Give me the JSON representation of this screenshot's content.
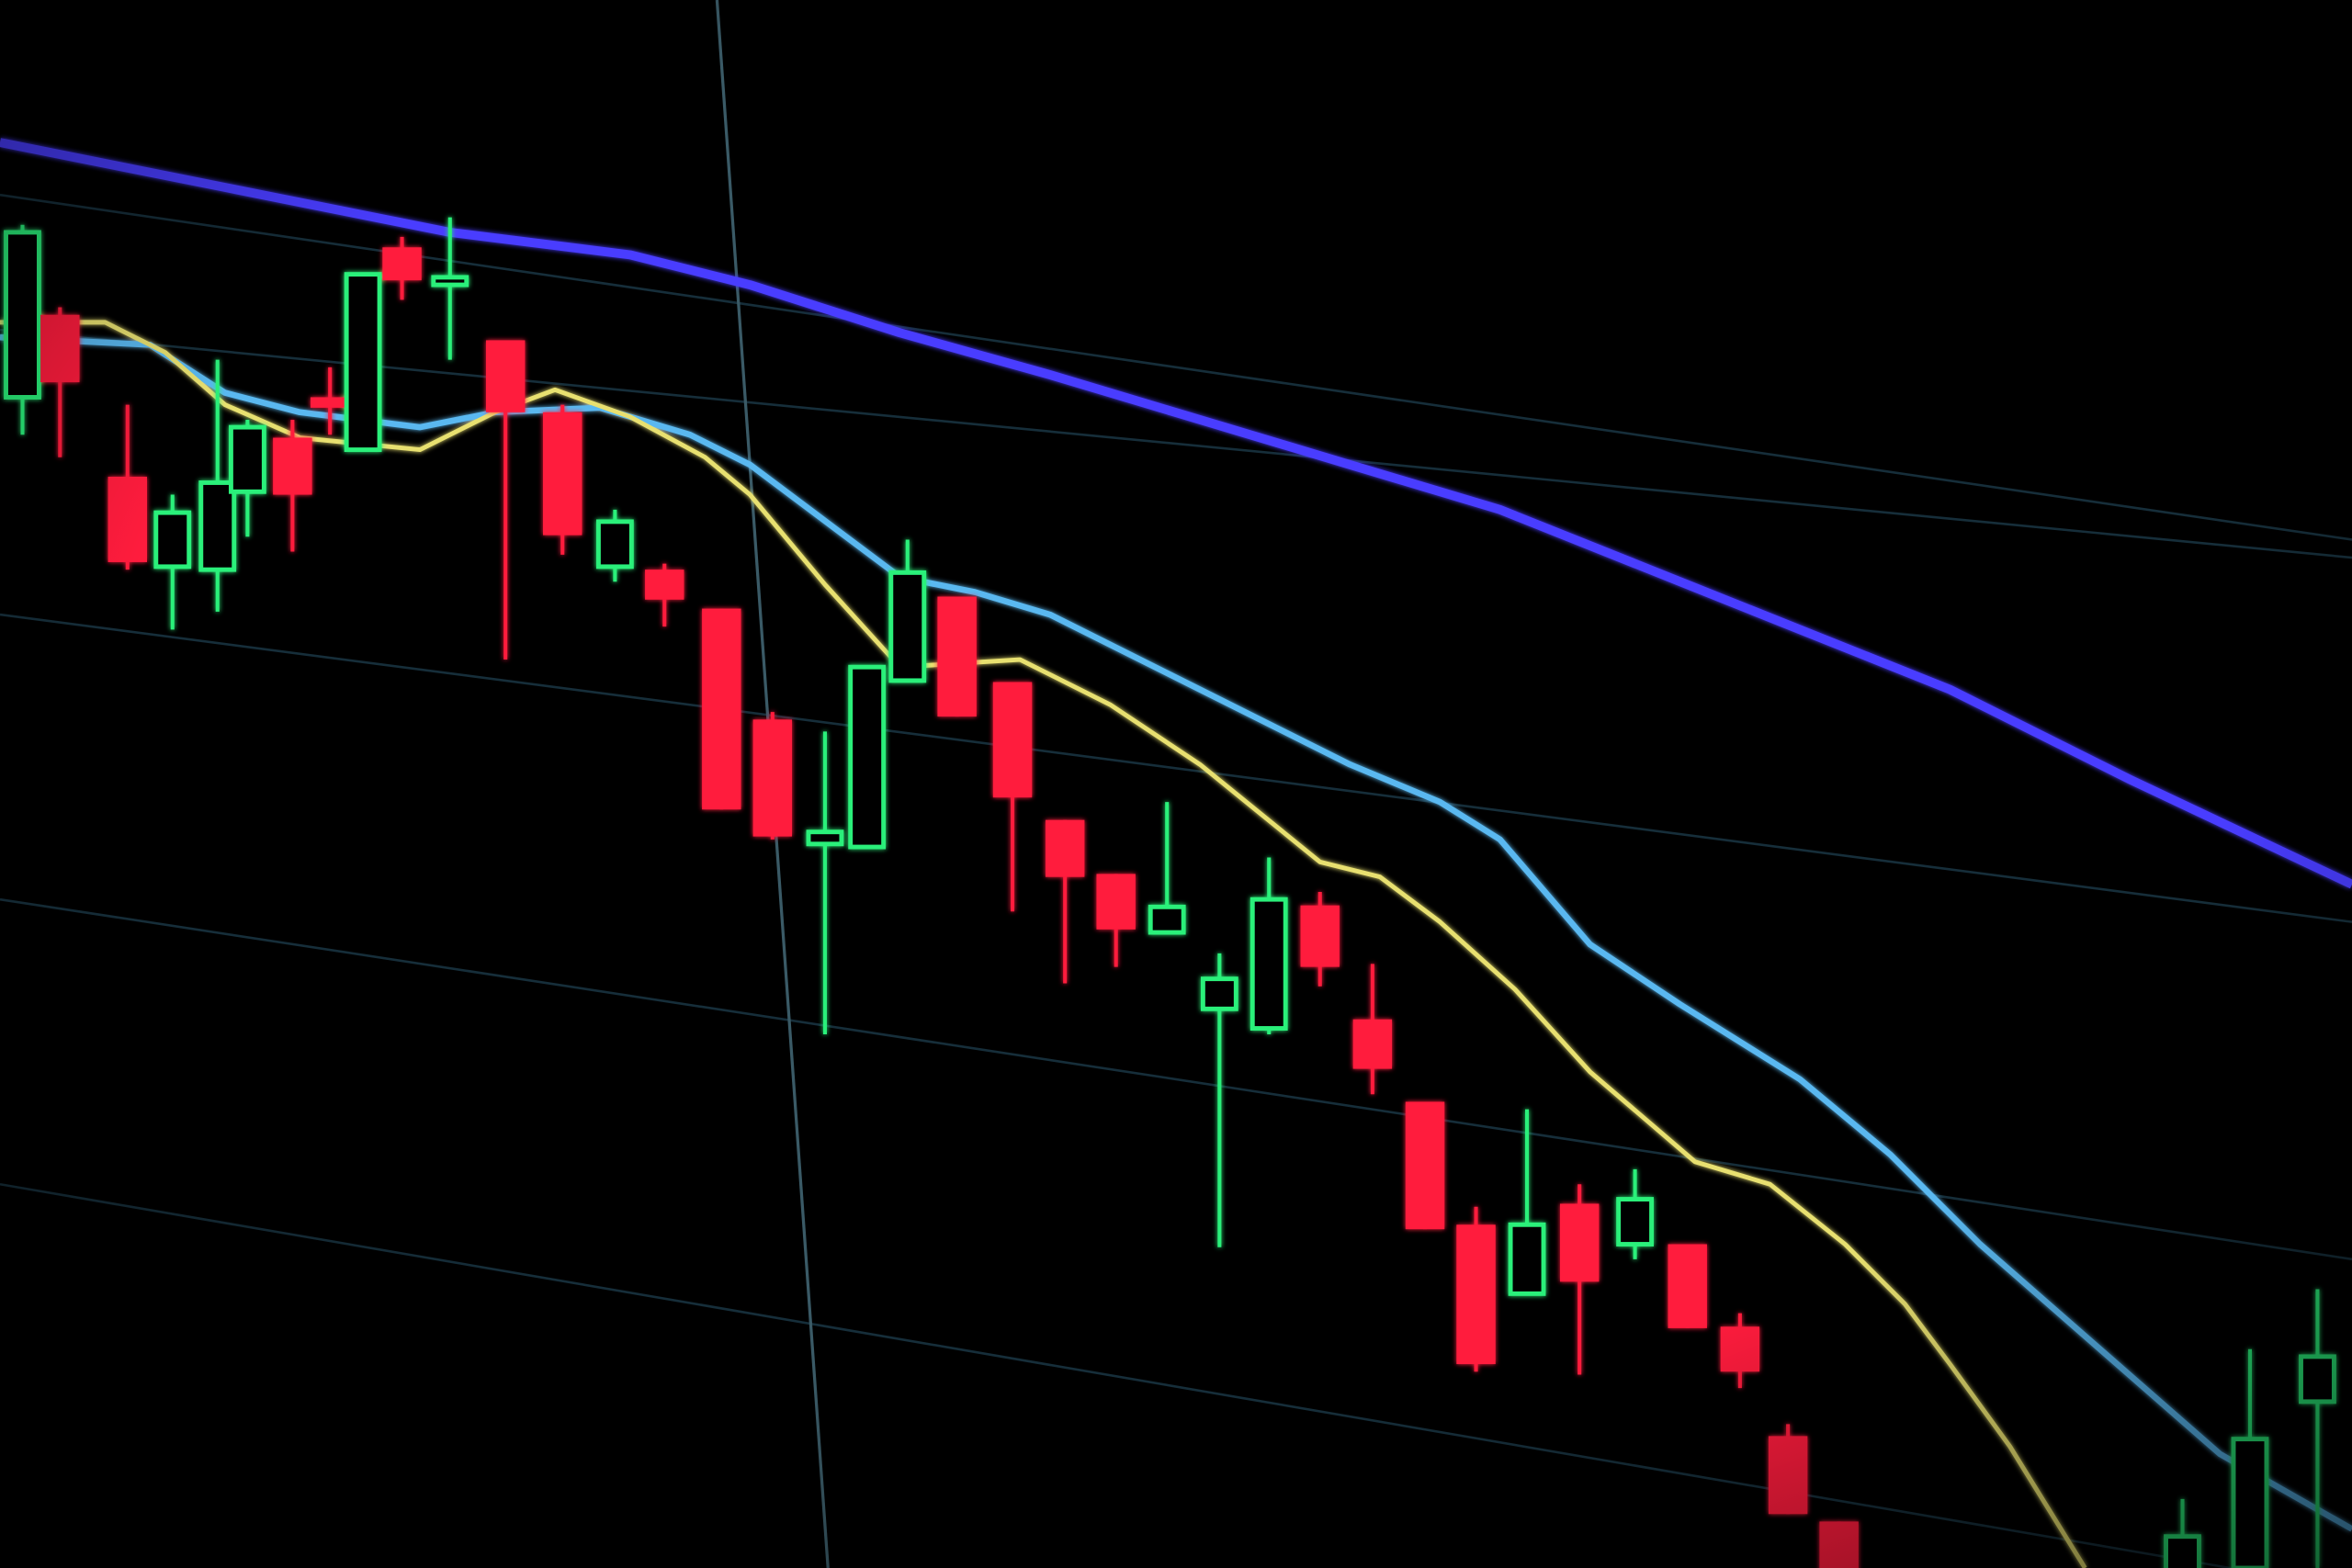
{
  "photo": {
    "subject": "candlestick-price-chart-on-screen",
    "colors": {
      "background": "#000000",
      "bearish_candle": "#ff1a3c",
      "bullish_candle": "#2cf07a",
      "moving_average_long": "#4a3cff",
      "moving_average_mid": "#5ab8f0",
      "moving_average_short": "#e8e070",
      "grid": "#1c3a48"
    }
  }
}
